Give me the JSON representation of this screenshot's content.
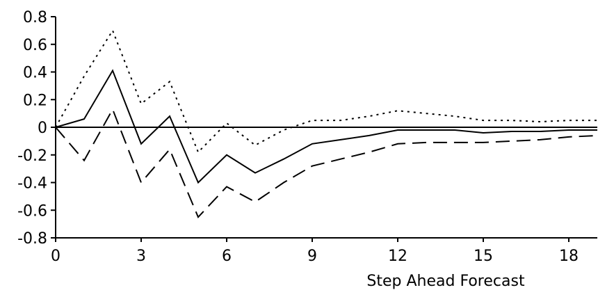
{
  "chart_data": {
    "type": "line",
    "title": "",
    "xlabel": "Step Ahead Forecast",
    "ylabel": "",
    "xlim": [
      0,
      19
    ],
    "ylim": [
      -0.8,
      0.8
    ],
    "x_ticks": [
      0,
      3,
      6,
      9,
      12,
      15,
      18
    ],
    "x_tick_labels": [
      "0",
      "3",
      "6",
      "9",
      "12",
      "15",
      "18"
    ],
    "y_ticks": [
      0.8,
      0.6,
      0.4,
      0.2,
      0,
      -0.2,
      -0.4,
      -0.6,
      -0.8
    ],
    "y_tick_labels": [
      "0.8",
      "0.6",
      "0.4",
      "0.2",
      "0",
      "-0.2",
      "-0.4",
      "-0.6",
      "-0.8"
    ],
    "grid": false,
    "zero_line": true,
    "x": [
      0,
      1,
      2,
      3,
      4,
      5,
      6,
      7,
      8,
      9,
      10,
      11,
      12,
      13,
      14,
      15,
      16,
      17,
      18,
      19
    ],
    "series": [
      {
        "style": "solid",
        "color": "#000000",
        "values": [
          0,
          0.06,
          0.41,
          -0.12,
          0.08,
          -0.4,
          -0.2,
          -0.33,
          -0.23,
          -0.12,
          -0.09,
          -0.06,
          -0.02,
          -0.02,
          -0.02,
          -0.04,
          -0.03,
          -0.03,
          -0.02,
          -0.02
        ]
      },
      {
        "style": "dotted",
        "color": "#000000",
        "values": [
          0,
          0.37,
          0.7,
          0.17,
          0.33,
          -0.18,
          0.03,
          -0.13,
          -0.02,
          0.05,
          0.05,
          0.08,
          0.12,
          0.1,
          0.08,
          0.05,
          0.05,
          0.04,
          0.05,
          0.05
        ]
      },
      {
        "style": "dashed",
        "color": "#000000",
        "values": [
          0,
          -0.24,
          0.13,
          -0.4,
          -0.16,
          -0.65,
          -0.43,
          -0.54,
          -0.4,
          -0.28,
          -0.23,
          -0.18,
          -0.12,
          -0.11,
          -0.11,
          -0.11,
          -0.1,
          -0.09,
          -0.07,
          -0.06
        ]
      }
    ]
  }
}
